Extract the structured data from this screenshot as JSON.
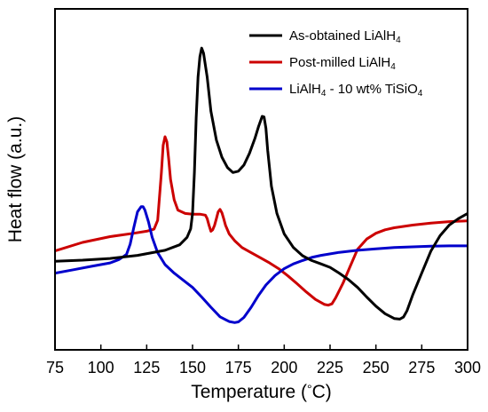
{
  "chart_data": {
    "type": "line",
    "xlabel_parts": [
      "Temperature (",
      "°",
      "C)"
    ],
    "ylabel": "Heat flow (a.u.)",
    "xlim": [
      75,
      300
    ],
    "ylim": [
      0,
      100
    ],
    "x_ticks": [
      75,
      100,
      125,
      150,
      175,
      200,
      225,
      250,
      275,
      300
    ],
    "y_ticks_shown": false,
    "grid": false,
    "legend_position": "top-right",
    "series": [
      {
        "name_parts": [
          [
            "As-obtained LiAlH",
            false
          ],
          [
            "4",
            true
          ]
        ],
        "color": "#000000",
        "x": [
          75,
          90,
          105,
          120,
          135,
          143,
          147,
          149,
          150,
          151,
          152,
          153,
          154,
          155,
          156,
          158,
          160,
          163,
          166,
          169,
          172,
          175,
          178,
          181,
          184,
          186,
          188,
          189,
          190,
          191,
          193,
          196,
          200,
          205,
          210,
          215,
          220,
          225,
          230,
          235,
          240,
          245,
          250,
          255,
          260,
          263,
          265,
          267,
          270,
          275,
          280,
          285,
          290,
          295,
          300
        ],
        "y": [
          26,
          26.3,
          26.8,
          27.7,
          29.2,
          30.8,
          33,
          35.5,
          40,
          52,
          68,
          80,
          86,
          88.5,
          87,
          80,
          70,
          61.5,
          56.5,
          53.5,
          52,
          52.4,
          54.2,
          57.6,
          62,
          65.5,
          68.5,
          68.3,
          65,
          58.5,
          48,
          40,
          34,
          30,
          27.6,
          26.2,
          25.2,
          24.2,
          22.5,
          20.6,
          18.3,
          15.5,
          12.8,
          10.6,
          9.2,
          9.0,
          9.6,
          11.5,
          16,
          22.5,
          29,
          33.5,
          36.6,
          38.5,
          40
        ]
      },
      {
        "name_parts": [
          [
            "Post-milled LiAlH",
            false
          ],
          [
            "4",
            true
          ]
        ],
        "color": "#cc0000",
        "x": [
          75,
          90,
          105,
          118,
          125,
          129,
          131,
          133,
          134,
          135,
          136,
          137,
          138,
          140,
          142,
          146,
          150,
          154,
          157,
          158,
          159,
          160,
          161,
          162,
          163,
          164,
          165,
          166,
          167,
          168,
          170,
          173,
          177,
          182,
          187,
          192,
          197,
          202,
          207,
          212,
          217,
          222,
          224,
          226,
          228,
          232,
          236,
          240,
          245,
          250,
          255,
          260,
          270,
          280,
          290,
          300
        ],
        "y": [
          29,
          31.5,
          33.2,
          34.2,
          34.8,
          35.4,
          38,
          52,
          60,
          62.5,
          61,
          56,
          50,
          44,
          41,
          40,
          39.8,
          39.8,
          39.5,
          38.5,
          36.5,
          34.8,
          35.2,
          36.5,
          38.5,
          40.5,
          41.2,
          40.2,
          38.5,
          36.5,
          34,
          32,
          30,
          28.5,
          27,
          25.5,
          23.8,
          21.7,
          19.4,
          17,
          14.8,
          13.3,
          13.1,
          13.5,
          15.2,
          19.5,
          24.5,
          29.5,
          32.5,
          34.2,
          35.2,
          35.8,
          36.6,
          37.2,
          37.6,
          37.8
        ]
      },
      {
        "name_parts": [
          [
            "LiAlH",
            false
          ],
          [
            "4",
            true
          ],
          [
            " - 10 wt% TiSiO",
            false
          ],
          [
            "4",
            true
          ]
        ],
        "color": "#0000cc",
        "x": [
          75,
          85,
          95,
          105,
          110,
          114,
          116,
          118,
          120,
          122,
          123,
          124,
          126,
          128,
          131,
          135,
          140,
          145,
          150,
          155,
          160,
          165,
          170,
          173,
          175,
          178,
          182,
          186,
          190,
          195,
          200,
          205,
          210,
          215,
          220,
          230,
          240,
          250,
          260,
          270,
          280,
          290,
          300
        ],
        "y": [
          22.5,
          23.5,
          24.5,
          25.5,
          26.5,
          28,
          31,
          36,
          40.5,
          42,
          42,
          41,
          37.5,
          33,
          28.5,
          25,
          22.5,
          20.4,
          18.3,
          15.5,
          12.5,
          9.7,
          8.3,
          8.0,
          8.2,
          9.5,
          12.5,
          16,
          19,
          21.8,
          23.8,
          25.2,
          26.2,
          27.1,
          27.7,
          28.6,
          29.2,
          29.6,
          30,
          30.2,
          30.4,
          30.5,
          30.5
        ]
      }
    ]
  }
}
